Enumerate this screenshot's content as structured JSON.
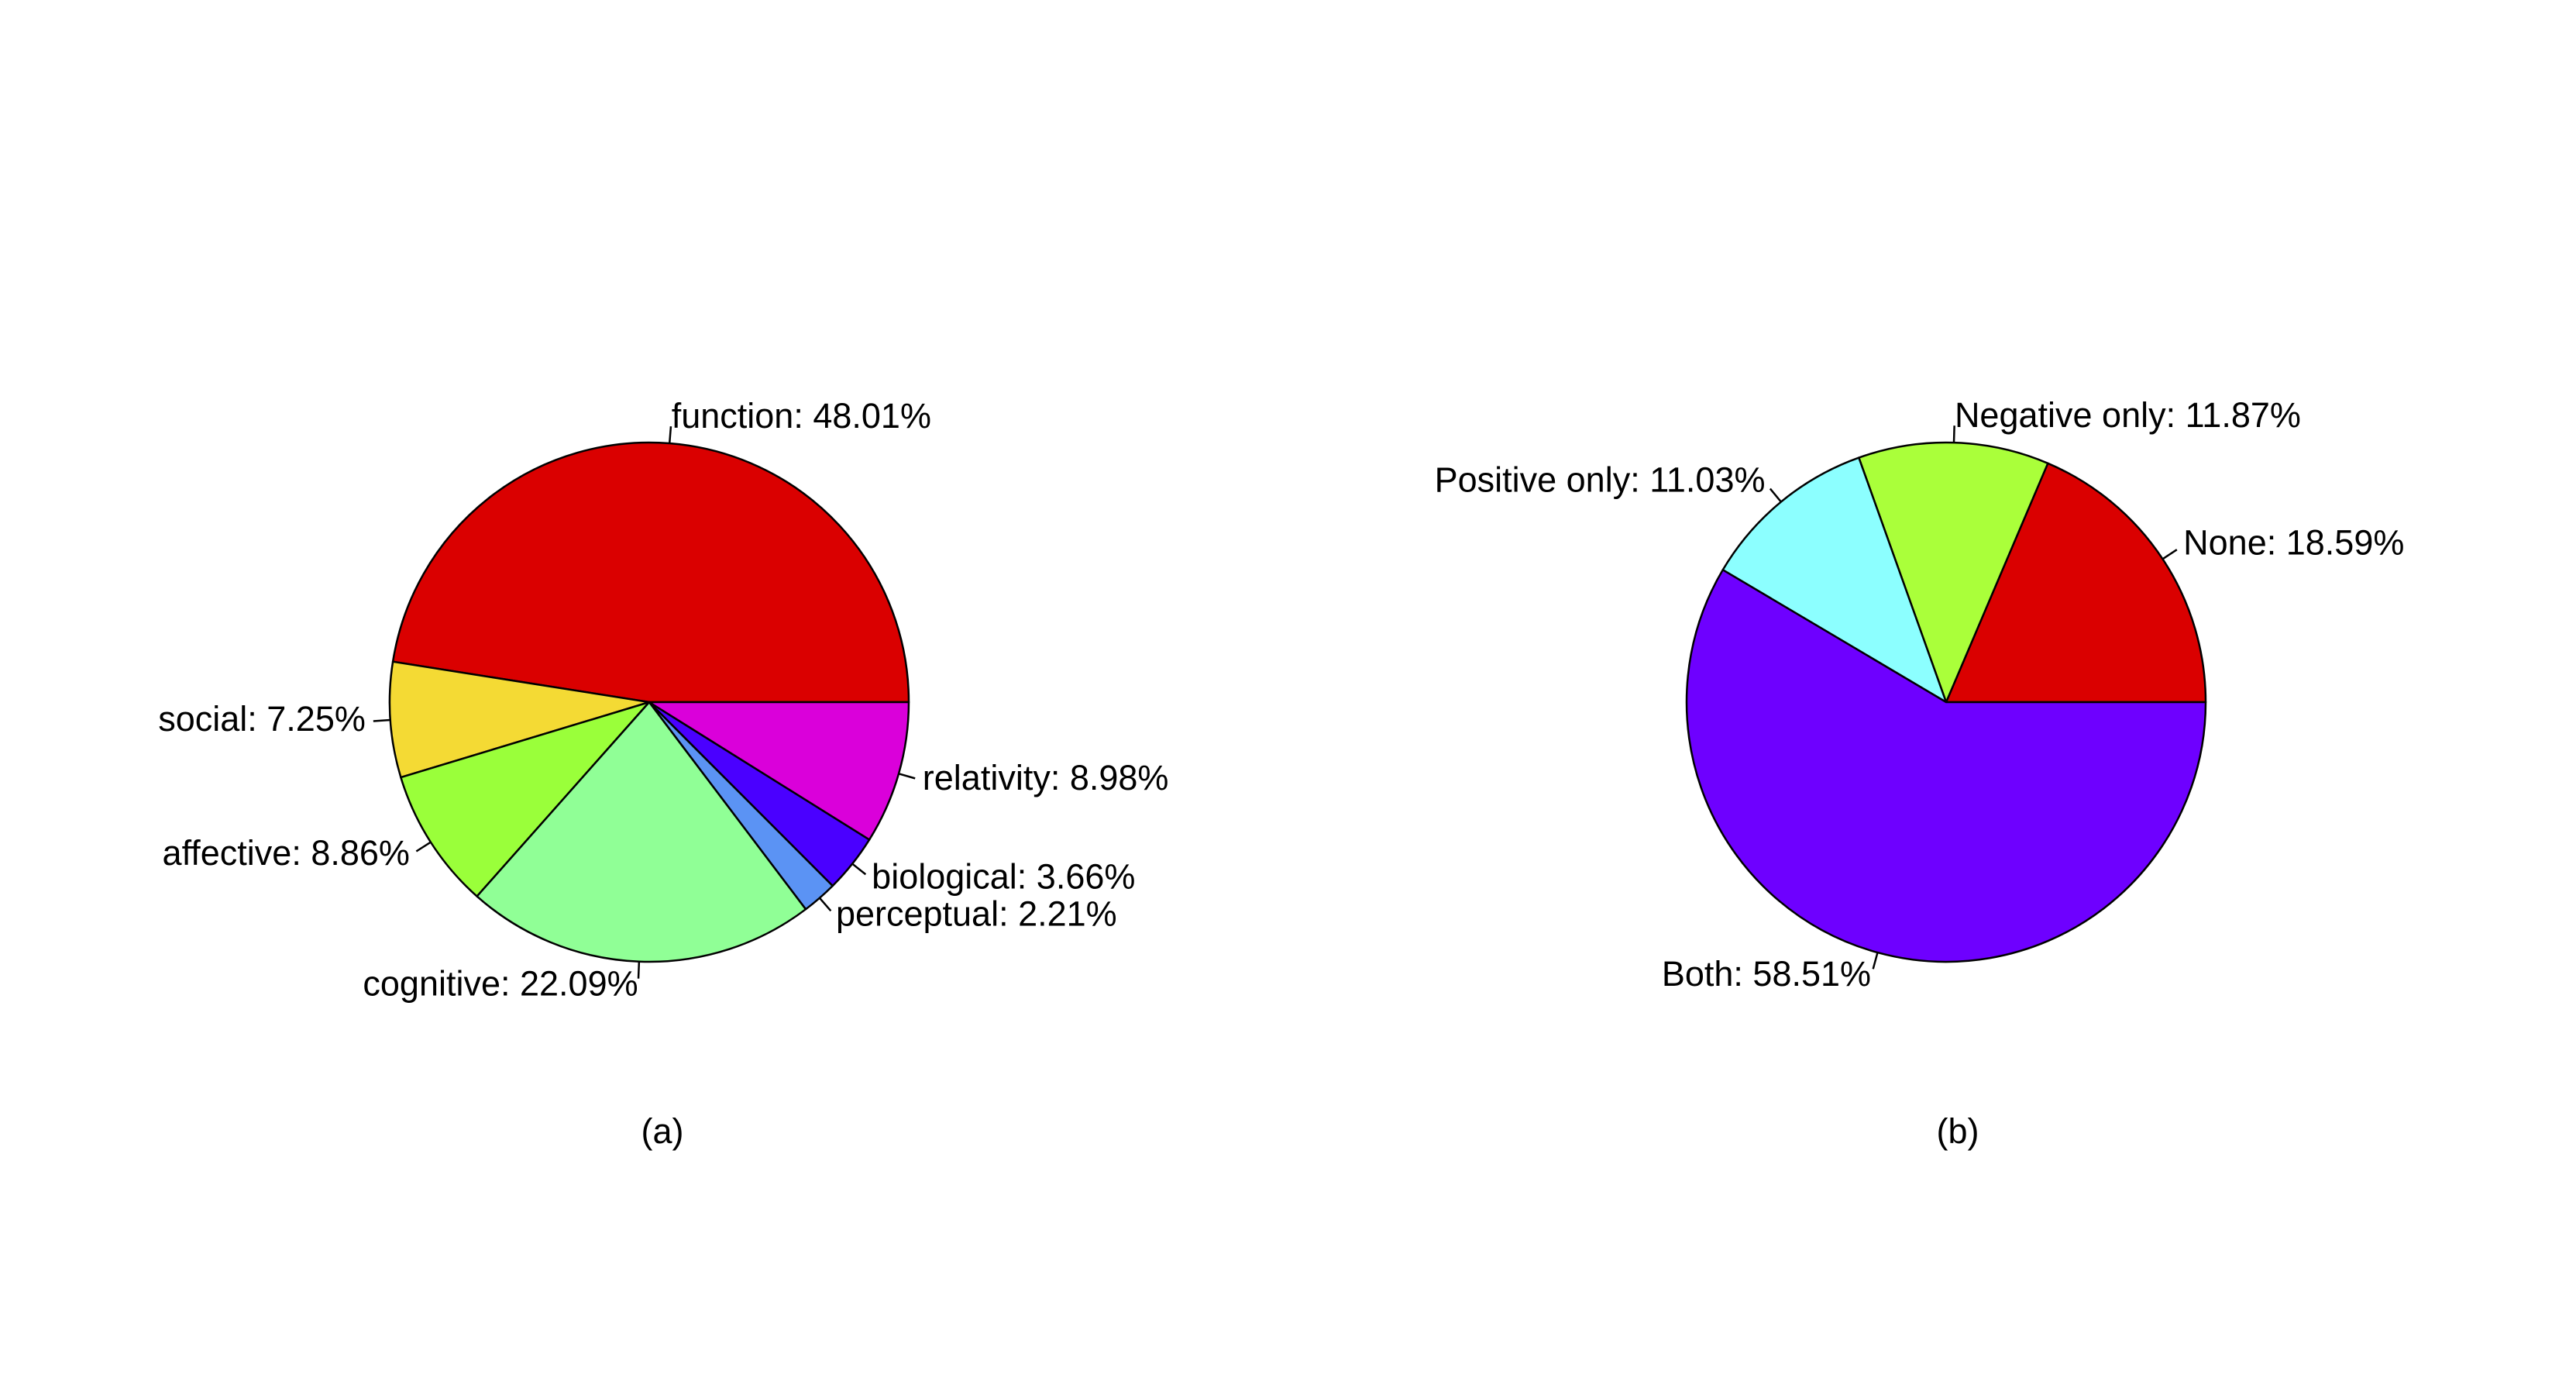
{
  "chart_data": [
    {
      "type": "pie",
      "caption": "(a)",
      "start_angle_deg": 0,
      "direction": "counterclockwise",
      "slices": [
        {
          "label": "function",
          "value": 48.01,
          "display": "function: 48.01%",
          "color": "#DA0000"
        },
        {
          "label": "social",
          "value": 7.25,
          "display": "social: 7.25%",
          "color": "#F4DA34"
        },
        {
          "label": "affective",
          "value": 8.86,
          "display": "affective: 8.86%",
          "color": "#9AFF3A"
        },
        {
          "label": "cognitive",
          "value": 22.09,
          "display": "cognitive: 22.09%",
          "color": "#90FF96"
        },
        {
          "label": "perceptual",
          "value": 2.21,
          "display": "perceptual: 2.21%",
          "color": "#5B93F4"
        },
        {
          "label": "biological",
          "value": 3.66,
          "display": "biological: 3.66%",
          "color": "#4A00FF"
        },
        {
          "label": "relativity",
          "value": 8.98,
          "display": "relativity: 8.98%",
          "color": "#DA00DA"
        }
      ]
    },
    {
      "type": "pie",
      "caption": "(b)",
      "start_angle_deg": 0,
      "direction": "counterclockwise",
      "slices": [
        {
          "label": "None",
          "value": 18.59,
          "display": "None: 18.59%",
          "color": "#DA0000"
        },
        {
          "label": "Negative only",
          "value": 11.87,
          "display": "Negative only: 11.87%",
          "color": "#AAFF3A"
        },
        {
          "label": "Positive only",
          "value": 11.03,
          "display": "Positive only: 11.03%",
          "color": "#8CFFFF"
        },
        {
          "label": "Both",
          "value": 58.51,
          "display": "Both: 58.51%",
          "color": "#6E00FF"
        }
      ]
    }
  ]
}
